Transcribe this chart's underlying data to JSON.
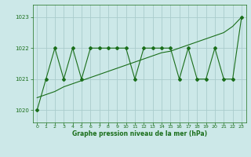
{
  "x": [
    0,
    1,
    2,
    3,
    4,
    5,
    6,
    7,
    8,
    9,
    10,
    11,
    12,
    13,
    14,
    15,
    16,
    17,
    18,
    19,
    20,
    21,
    22,
    23
  ],
  "y_actual": [
    1020.0,
    1021.0,
    1022.0,
    1021.0,
    1022.0,
    1021.0,
    1022.0,
    1022.0,
    1022.0,
    1022.0,
    1022.0,
    1021.0,
    1022.0,
    1022.0,
    1022.0,
    1022.0,
    1021.0,
    1022.0,
    1021.0,
    1021.0,
    1022.0,
    1021.0,
    1021.0,
    1023.0
  ],
  "y_trend": [
    1020.4,
    1020.5,
    1020.6,
    1020.75,
    1020.85,
    1020.95,
    1021.05,
    1021.15,
    1021.25,
    1021.35,
    1021.45,
    1021.55,
    1021.65,
    1021.75,
    1021.85,
    1021.9,
    1022.0,
    1022.1,
    1022.2,
    1022.3,
    1022.4,
    1022.5,
    1022.7,
    1023.0
  ],
  "line_color": "#1a6e1a",
  "bg_color": "#cce8e8",
  "grid_color": "#aacccc",
  "ylabel_ticks": [
    1020,
    1021,
    1022,
    1023
  ],
  "xlabel_ticks": [
    0,
    1,
    2,
    3,
    4,
    5,
    6,
    7,
    8,
    9,
    10,
    11,
    12,
    13,
    14,
    15,
    16,
    17,
    18,
    19,
    20,
    21,
    22,
    23
  ],
  "xlabel": "Graphe pression niveau de la mer (hPa)",
  "ylim": [
    1019.6,
    1023.4
  ],
  "xlim": [
    -0.5,
    23.5
  ],
  "marker": "D",
  "markersize": 2.0,
  "linewidth": 0.8
}
